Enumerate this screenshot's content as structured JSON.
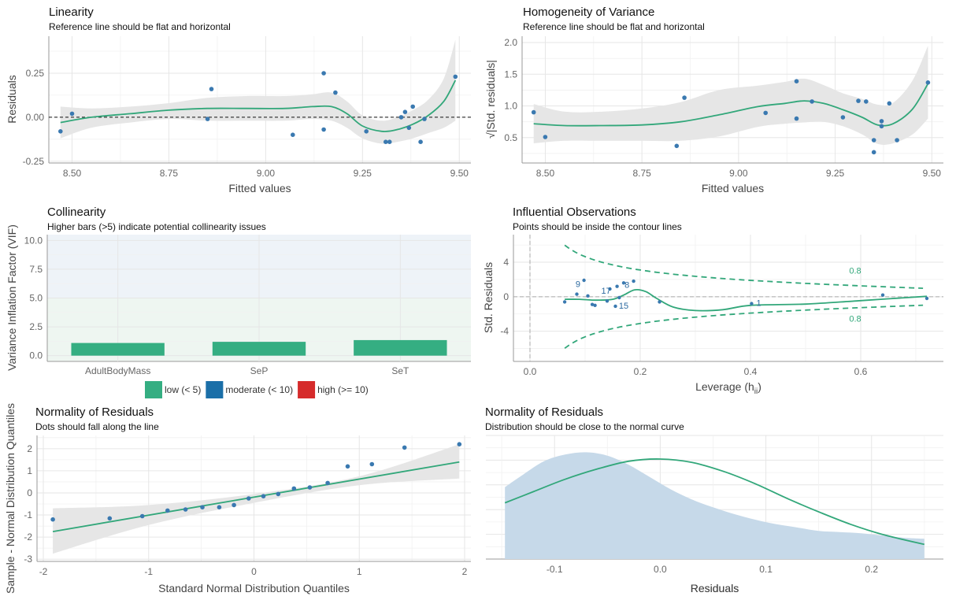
{
  "colors": {
    "point": "#3a79b0",
    "fit": "#32a77a",
    "band": "#e6e6e6",
    "bar_low": "#35ae82",
    "bar_moderate": "#1b6fa8",
    "bar_high": "#d62b2b",
    "zone_low": "#eef6f1",
    "zone_moderate": "#eef3f8",
    "density": "#c6d9e9"
  },
  "chart_data": [
    {
      "id": "linearity",
      "type": "scatter",
      "title": "Linearity",
      "subtitle": "Reference line should be flat and horizontal",
      "xlabel": "Fitted values",
      "ylabel": "Residuals",
      "xlim": [
        8.44,
        9.53
      ],
      "ylim": [
        -0.26,
        0.46
      ],
      "xticks": [
        8.5,
        8.75,
        9.0,
        9.25,
        9.5
      ],
      "xtick_labels": [
        "8.50",
        "8.75",
        "9.00",
        "9.25",
        "9.50"
      ],
      "yticks": [
        -0.25,
        0.0,
        0.25
      ],
      "ytick_labels": [
        "-0.25",
        "0.00",
        "0.25"
      ],
      "reference_line": 0,
      "points": [
        [
          8.47,
          -0.08
        ],
        [
          8.5,
          0.02
        ],
        [
          8.85,
          -0.01
        ],
        [
          8.86,
          0.16
        ],
        [
          9.07,
          -0.1
        ],
        [
          9.15,
          0.25
        ],
        [
          9.15,
          -0.07
        ],
        [
          9.18,
          0.14
        ],
        [
          9.26,
          -0.08
        ],
        [
          9.31,
          -0.14
        ],
        [
          9.32,
          -0.14
        ],
        [
          9.35,
          0.0
        ],
        [
          9.36,
          0.03
        ],
        [
          9.37,
          -0.06
        ],
        [
          9.38,
          0.06
        ],
        [
          9.4,
          -0.14
        ],
        [
          9.41,
          -0.01
        ],
        [
          9.49,
          0.23
        ]
      ],
      "fit": [
        [
          8.47,
          -0.03
        ],
        [
          8.55,
          0.0
        ],
        [
          8.65,
          0.02
        ],
        [
          8.75,
          0.04
        ],
        [
          8.85,
          0.05
        ],
        [
          8.95,
          0.05
        ],
        [
          9.05,
          0.05
        ],
        [
          9.12,
          0.06
        ],
        [
          9.17,
          0.06
        ],
        [
          9.21,
          0.02
        ],
        [
          9.25,
          -0.05
        ],
        [
          9.3,
          -0.08
        ],
        [
          9.34,
          -0.07
        ],
        [
          9.38,
          -0.04
        ],
        [
          9.42,
          0.01
        ],
        [
          9.46,
          0.09
        ],
        [
          9.49,
          0.21
        ]
      ],
      "band_upper": [
        [
          8.47,
          0.06
        ],
        [
          8.55,
          0.05
        ],
        [
          8.65,
          0.06
        ],
        [
          8.75,
          0.08
        ],
        [
          8.85,
          0.11
        ],
        [
          8.95,
          0.12
        ],
        [
          9.05,
          0.12
        ],
        [
          9.12,
          0.13
        ],
        [
          9.17,
          0.14
        ],
        [
          9.21,
          0.09
        ],
        [
          9.25,
          0.01
        ],
        [
          9.3,
          -0.02
        ],
        [
          9.34,
          0.0
        ],
        [
          9.38,
          0.04
        ],
        [
          9.42,
          0.1
        ],
        [
          9.46,
          0.22
        ],
        [
          9.49,
          0.44
        ]
      ],
      "band_lower": [
        [
          8.47,
          -0.12
        ],
        [
          8.55,
          -0.06
        ],
        [
          8.65,
          -0.03
        ],
        [
          8.75,
          -0.01
        ],
        [
          8.85,
          -0.02
        ],
        [
          8.95,
          -0.02
        ],
        [
          9.05,
          -0.02
        ],
        [
          9.12,
          -0.01
        ],
        [
          9.17,
          -0.02
        ],
        [
          9.21,
          -0.06
        ],
        [
          9.25,
          -0.12
        ],
        [
          9.3,
          -0.15
        ],
        [
          9.34,
          -0.14
        ],
        [
          9.38,
          -0.12
        ],
        [
          9.42,
          -0.09
        ],
        [
          9.46,
          -0.06
        ],
        [
          9.49,
          -0.02
        ]
      ]
    },
    {
      "id": "homogeneity",
      "type": "scatter",
      "title": "Homogeneity of Variance",
      "subtitle": "Reference line should be flat and horizontal",
      "xlabel": "Fitted values",
      "ylabel": "√|Std. residuals|",
      "xlim": [
        8.44,
        9.53
      ],
      "ylim": [
        0.1,
        2.1
      ],
      "xticks": [
        8.5,
        8.75,
        9.0,
        9.25,
        9.5
      ],
      "xtick_labels": [
        "8.50",
        "8.75",
        "9.00",
        "9.25",
        "9.50"
      ],
      "yticks": [
        0.5,
        1.0,
        1.5,
        2.0
      ],
      "ytick_labels": [
        "0.5",
        "1.0",
        "1.5",
        "2.0"
      ],
      "points": [
        [
          8.47,
          0.9
        ],
        [
          8.5,
          0.51
        ],
        [
          8.84,
          0.37
        ],
        [
          8.86,
          1.13
        ],
        [
          9.07,
          0.89
        ],
        [
          9.15,
          1.39
        ],
        [
          9.15,
          0.8
        ],
        [
          9.19,
          1.07
        ],
        [
          9.27,
          0.82
        ],
        [
          9.31,
          1.08
        ],
        [
          9.33,
          1.07
        ],
        [
          9.35,
          0.27
        ],
        [
          9.35,
          0.46
        ],
        [
          9.37,
          0.76
        ],
        [
          9.37,
          0.68
        ],
        [
          9.39,
          1.04
        ],
        [
          9.41,
          0.46
        ],
        [
          9.49,
          1.37
        ]
      ],
      "fit": [
        [
          8.47,
          0.72
        ],
        [
          8.55,
          0.69
        ],
        [
          8.65,
          0.69
        ],
        [
          8.75,
          0.7
        ],
        [
          8.85,
          0.75
        ],
        [
          8.95,
          0.86
        ],
        [
          9.05,
          0.99
        ],
        [
          9.12,
          1.04
        ],
        [
          9.17,
          1.08
        ],
        [
          9.22,
          1.04
        ],
        [
          9.27,
          0.94
        ],
        [
          9.32,
          0.82
        ],
        [
          9.36,
          0.7
        ],
        [
          9.4,
          0.72
        ],
        [
          9.45,
          0.95
        ],
        [
          9.49,
          1.35
        ]
      ],
      "band_upper": [
        [
          8.47,
          1.03
        ],
        [
          8.55,
          0.91
        ],
        [
          8.65,
          0.91
        ],
        [
          8.75,
          0.96
        ],
        [
          8.85,
          1.06
        ],
        [
          8.95,
          1.25
        ],
        [
          9.05,
          1.32
        ],
        [
          9.12,
          1.38
        ],
        [
          9.17,
          1.43
        ],
        [
          9.22,
          1.33
        ],
        [
          9.27,
          1.2
        ],
        [
          9.32,
          1.11
        ],
        [
          9.36,
          1.02
        ],
        [
          9.4,
          1.05
        ],
        [
          9.45,
          1.4
        ],
        [
          9.49,
          1.95
        ]
      ],
      "band_lower": [
        [
          8.47,
          0.41
        ],
        [
          8.55,
          0.45
        ],
        [
          8.65,
          0.45
        ],
        [
          8.75,
          0.45
        ],
        [
          8.85,
          0.45
        ],
        [
          8.95,
          0.52
        ],
        [
          9.05,
          0.67
        ],
        [
          9.12,
          0.72
        ],
        [
          9.17,
          0.74
        ],
        [
          9.22,
          0.75
        ],
        [
          9.27,
          0.68
        ],
        [
          9.32,
          0.55
        ],
        [
          9.36,
          0.4
        ],
        [
          9.4,
          0.41
        ],
        [
          9.45,
          0.55
        ],
        [
          9.49,
          0.8
        ]
      ]
    },
    {
      "id": "collinearity",
      "type": "bar",
      "title": "Collinearity",
      "subtitle": "Higher bars (>5) indicate potential collinearity issues",
      "xlabel": "",
      "ylabel": "Variance Inflation Factor (VIF)",
      "ylim": [
        -0.5,
        10.5
      ],
      "yticks": [
        0,
        2.5,
        5,
        7.5,
        10
      ],
      "ytick_labels": [
        "0.0",
        "2.5",
        "5.0",
        "7.5",
        "10.0"
      ],
      "categories": [
        "AdultBodyMass",
        "SeP",
        "SeT"
      ],
      "values": [
        1.1,
        1.2,
        1.35
      ],
      "legend": [
        {
          "label": "low (< 5)",
          "color": "#35ae82"
        },
        {
          "label": "moderate (< 10)",
          "color": "#1b6fa8"
        },
        {
          "label": "high (>= 10)",
          "color": "#d62b2b"
        }
      ],
      "legend_position": "bottom"
    },
    {
      "id": "influential",
      "type": "scatter",
      "title": "Influential Observations",
      "subtitle": "Points should be inside the contour lines",
      "xlabel": "Leverage (h",
      "xlabel_sub": "ii",
      "xlabel_end": ")",
      "ylabel": "Std. Residuals",
      "xlim": [
        -0.03,
        0.75
      ],
      "ylim": [
        -7.5,
        7.2
      ],
      "xticks": [
        0.0,
        0.2,
        0.4,
        0.6
      ],
      "xtick_labels": [
        "0.0",
        "0.2",
        "0.4",
        "0.6"
      ],
      "yticks": [
        -4,
        0,
        4
      ],
      "ytick_labels": [
        "-4",
        "0",
        "4"
      ],
      "contour_label": "0.8",
      "points": [
        [
          0.063,
          -0.6
        ],
        [
          0.085,
          0.3
        ],
        [
          0.098,
          1.9
        ],
        [
          0.105,
          0.1
        ],
        [
          0.113,
          -0.9
        ],
        [
          0.118,
          -1.0
        ],
        [
          0.14,
          -0.5
        ],
        [
          0.145,
          0.9
        ],
        [
          0.155,
          -1.1
        ],
        [
          0.158,
          1.2
        ],
        [
          0.162,
          -0.1
        ],
        [
          0.17,
          1.6
        ],
        [
          0.188,
          1.8
        ],
        [
          0.235,
          -0.6
        ],
        [
          0.402,
          -0.8
        ],
        [
          0.64,
          0.2
        ],
        [
          0.72,
          -0.2
        ]
      ],
      "point_labels": [
        {
          "text": "9",
          "x": 0.087,
          "y": 1.5
        },
        {
          "text": "17",
          "x": 0.138,
          "y": 0.7
        },
        {
          "text": "8",
          "x": 0.176,
          "y": 1.4
        },
        {
          "text": "15",
          "x": 0.17,
          "y": -1.0
        },
        {
          "text": "1",
          "x": 0.415,
          "y": -0.7
        }
      ],
      "fit": [
        [
          0.063,
          -0.3
        ],
        [
          0.09,
          -0.3
        ],
        [
          0.12,
          -0.4
        ],
        [
          0.15,
          -0.3
        ],
        [
          0.17,
          0.2
        ],
        [
          0.19,
          0.8
        ],
        [
          0.21,
          0.6
        ],
        [
          0.23,
          -0.2
        ],
        [
          0.26,
          -1.2
        ],
        [
          0.3,
          -1.6
        ],
        [
          0.35,
          -1.5
        ],
        [
          0.4,
          -1.0
        ],
        [
          0.5,
          -0.85
        ],
        [
          0.6,
          -0.45
        ],
        [
          0.72,
          0.05
        ]
      ]
    },
    {
      "id": "qq",
      "type": "scatter",
      "title": "Normality of Residuals",
      "subtitle": "Dots should fall along the line",
      "xlabel": "Standard Normal Distribution Quantiles",
      "ylabel": "Sample - Normal Distribution Quantiles",
      "xlim": [
        -2.06,
        2.06
      ],
      "ylim": [
        -3.1,
        2.6
      ],
      "xticks": [
        -2,
        -1,
        0,
        1,
        2
      ],
      "xtick_labels": [
        "-2",
        "-1",
        "0",
        "1",
        "2"
      ],
      "yticks": [
        -3,
        -2,
        -1,
        0,
        1,
        2
      ],
      "ytick_labels": [
        "-3",
        "-2",
        "-1",
        "0",
        "1",
        "2"
      ],
      "points": [
        [
          -1.91,
          -1.2
        ],
        [
          -1.37,
          -1.15
        ],
        [
          -1.06,
          -1.05
        ],
        [
          -0.82,
          -0.8
        ],
        [
          -0.65,
          -0.75
        ],
        [
          -0.49,
          -0.65
        ],
        [
          -0.33,
          -0.65
        ],
        [
          -0.19,
          -0.55
        ],
        [
          -0.05,
          -0.25
        ],
        [
          0.09,
          -0.15
        ],
        [
          0.23,
          -0.05
        ],
        [
          0.38,
          0.2
        ],
        [
          0.53,
          0.25
        ],
        [
          0.7,
          0.45
        ],
        [
          0.89,
          1.2
        ],
        [
          1.12,
          1.3
        ],
        [
          1.43,
          2.05
        ],
        [
          1.95,
          2.2
        ]
      ],
      "fit_line": [
        [
          -1.91,
          -1.75
        ],
        [
          1.95,
          1.4
        ]
      ],
      "band_upper": [
        [
          -1.91,
          -0.7
        ],
        [
          -1.0,
          -0.55
        ],
        [
          0.0,
          -0.05
        ],
        [
          1.0,
          0.75
        ],
        [
          1.95,
          2.2
        ]
      ],
      "band_lower": [
        [
          -1.91,
          -2.75
        ],
        [
          -1.0,
          -1.45
        ],
        [
          0.0,
          -0.45
        ],
        [
          1.0,
          0.35
        ],
        [
          1.95,
          0.65
        ]
      ]
    },
    {
      "id": "density",
      "type": "area",
      "title": "Normality of Residuals",
      "subtitle": "Distribution should be close to the normal curve",
      "xlabel": "Residuals",
      "ylabel": "",
      "xlim": [
        -0.165,
        0.268
      ],
      "ylim": [
        0,
        1.1
      ],
      "xticks": [
        -0.1,
        0.0,
        0.1,
        0.2
      ],
      "xtick_labels": [
        "-0.1",
        "0.0",
        "0.1",
        "0.2"
      ],
      "empirical_density": [
        [
          -0.147,
          0.64
        ],
        [
          -0.13,
          0.75
        ],
        [
          -0.11,
          0.87
        ],
        [
          -0.09,
          0.93
        ],
        [
          -0.07,
          0.95
        ],
        [
          -0.05,
          0.92
        ],
        [
          -0.03,
          0.84
        ],
        [
          -0.01,
          0.73
        ],
        [
          0.01,
          0.62
        ],
        [
          0.03,
          0.53
        ],
        [
          0.05,
          0.46
        ],
        [
          0.07,
          0.4
        ],
        [
          0.09,
          0.35
        ],
        [
          0.11,
          0.31
        ],
        [
          0.13,
          0.28
        ],
        [
          0.15,
          0.25
        ],
        [
          0.17,
          0.24
        ],
        [
          0.19,
          0.23
        ],
        [
          0.21,
          0.21
        ],
        [
          0.23,
          0.19
        ],
        [
          0.25,
          0.18
        ]
      ],
      "normal_curve": [
        [
          -0.147,
          0.5
        ],
        [
          -0.12,
          0.6
        ],
        [
          -0.09,
          0.71
        ],
        [
          -0.06,
          0.8
        ],
        [
          -0.03,
          0.87
        ],
        [
          0.0,
          0.89
        ],
        [
          0.03,
          0.86
        ],
        [
          0.06,
          0.78
        ],
        [
          0.09,
          0.67
        ],
        [
          0.12,
          0.54
        ],
        [
          0.15,
          0.42
        ],
        [
          0.18,
          0.31
        ],
        [
          0.21,
          0.22
        ],
        [
          0.25,
          0.13
        ]
      ]
    }
  ]
}
